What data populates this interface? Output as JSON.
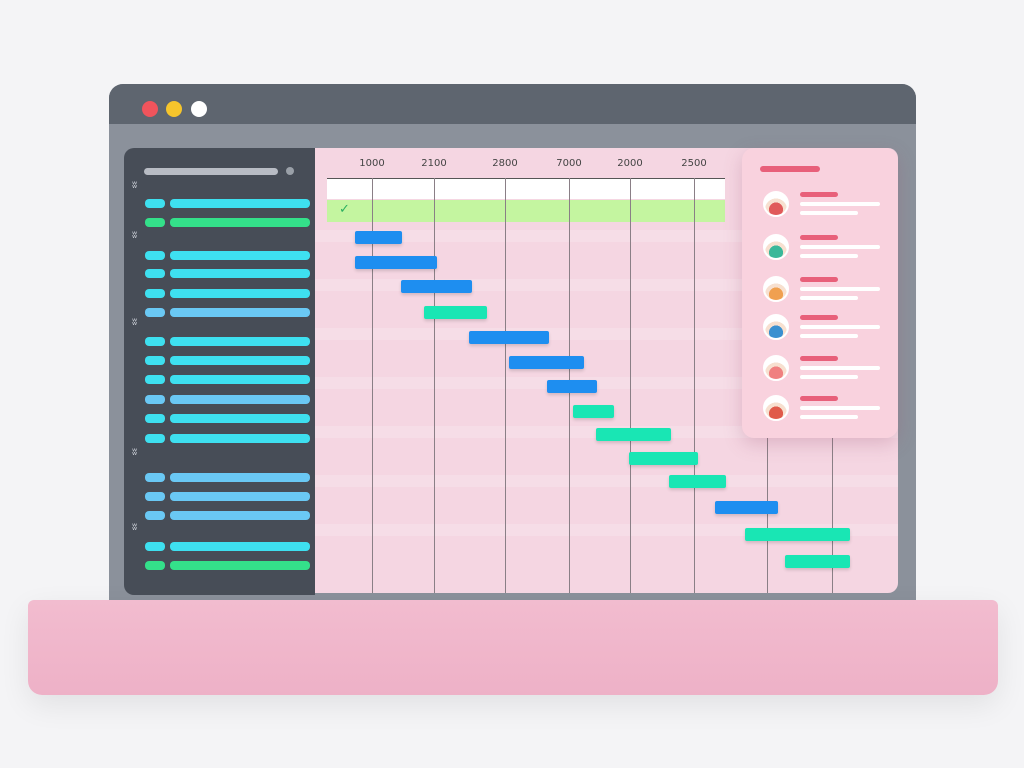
{
  "window": {
    "controls": [
      {
        "name": "close",
        "color": "#f0545c"
      },
      {
        "name": "minimize",
        "color": "#f6c52c"
      },
      {
        "name": "maximize",
        "color": "#ffffff"
      }
    ]
  },
  "chart": {
    "ticks": [
      "1000",
      "2100",
      "2800",
      "7000",
      "2000",
      "2500"
    ],
    "milestone_icon": "check-icon"
  },
  "colors": {
    "blue": "#1e8ef0",
    "teal": "#19e6b4",
    "cyan": "#3ee0f0",
    "green": "#34e08a",
    "sky": "#6ac8f4",
    "milestone": "#c4f5a0",
    "accent": "#e8607a"
  },
  "sidebar": {
    "group_icon": "butterfly-icon"
  },
  "panel": {
    "avatars": [
      "#e05a5a",
      "#3ab89a",
      "#f0a050",
      "#3a90d0",
      "#f08080",
      "#e05a4a"
    ]
  }
}
